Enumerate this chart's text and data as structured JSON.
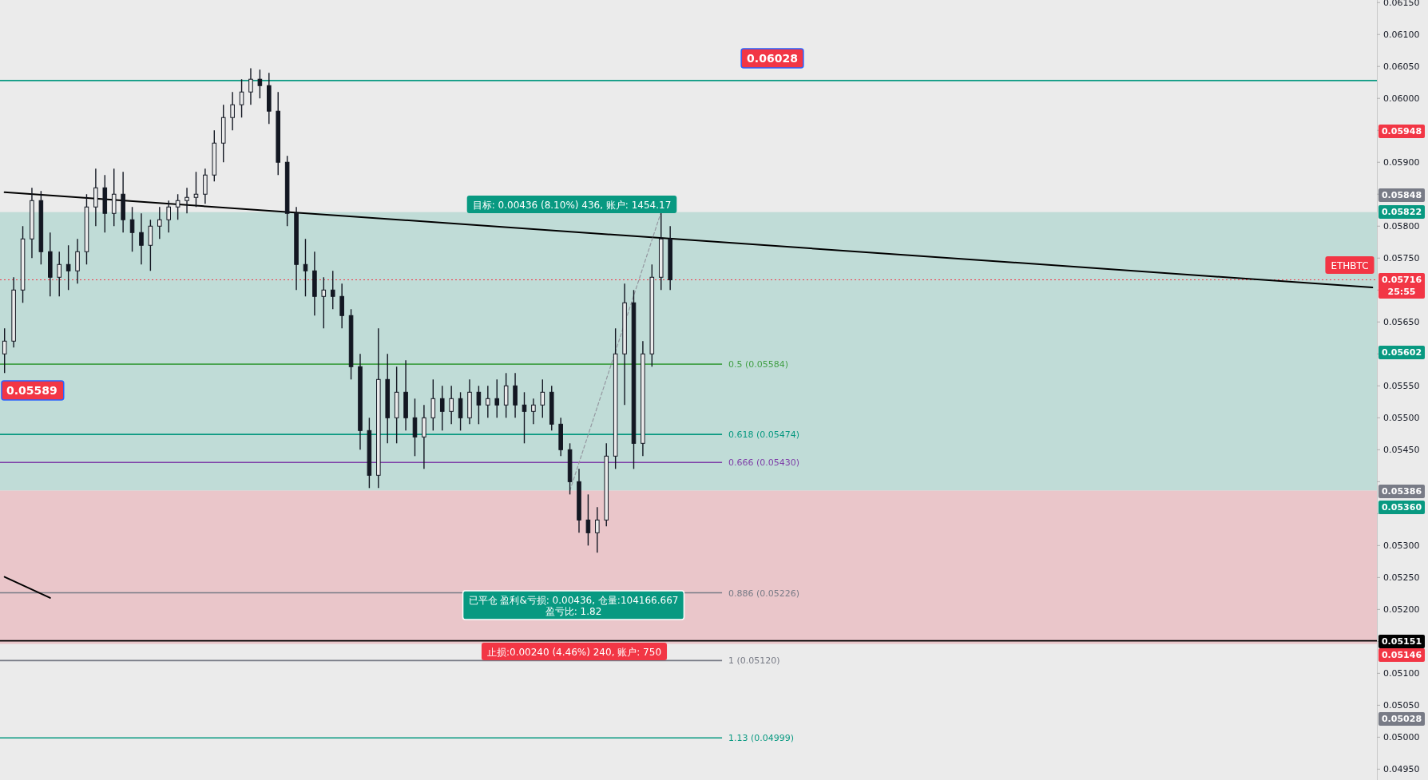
{
  "chart_data": {
    "type": "candlestick",
    "categories": [
      null,
      null,
      null,
      null,
      null,
      null,
      null,
      null,
      null,
      null,
      null,
      null,
      null,
      null,
      null,
      null,
      null,
      null,
      null,
      null,
      null,
      null,
      null,
      null,
      null,
      null,
      null,
      null,
      null,
      null,
      null,
      null,
      null,
      null,
      null,
      null,
      null,
      null,
      null,
      null,
      null,
      null,
      null,
      null,
      null,
      null,
      null,
      null,
      null,
      null,
      null,
      null,
      null,
      null,
      null,
      null,
      null,
      null,
      null,
      null,
      null,
      null,
      null,
      null,
      null,
      null,
      null,
      null,
      null,
      null,
      null,
      null,
      null,
      null,
      null,
      null,
      null,
      null,
      null,
      null,
      null,
      null,
      null,
      null,
      null,
      null,
      null,
      null,
      null,
      null,
      null,
      null,
      null,
      null,
      null,
      null,
      null,
      null,
      null,
      null,
      null,
      null,
      null,
      null,
      null,
      null,
      null,
      null,
      null,
      null,
      null,
      null,
      null,
      null,
      null,
      null,
      null,
      null,
      null,
      null,
      null,
      null,
      null,
      null,
      null,
      null,
      null,
      null,
      null,
      null,
      null,
      null,
      null,
      null,
      null,
      null,
      null,
      null,
      null,
      null,
      null,
      null,
      null,
      null,
      null,
      null,
      null,
      null,
      null,
      null,
      null
    ],
    "ohlc": [
      [
        0.056,
        0.0564,
        0.0557,
        0.0562
      ],
      [
        0.0562,
        0.0572,
        0.0561,
        0.057
      ],
      [
        0.057,
        0.058,
        0.0568,
        0.0578
      ],
      [
        0.0578,
        0.0586,
        0.0575,
        0.0584
      ],
      [
        0.0584,
        0.05855,
        0.0574,
        0.0576
      ],
      [
        0.0576,
        0.0579,
        0.0569,
        0.0572
      ],
      [
        0.0572,
        0.0576,
        0.0569,
        0.0574
      ],
      [
        0.0574,
        0.0577,
        0.057,
        0.0573
      ],
      [
        0.0573,
        0.0578,
        0.0571,
        0.0576
      ],
      [
        0.0576,
        0.0585,
        0.0574,
        0.0583
      ],
      [
        0.0583,
        0.0589,
        0.058,
        0.0586
      ],
      [
        0.0586,
        0.0588,
        0.0579,
        0.0582
      ],
      [
        0.0582,
        0.0589,
        0.058,
        0.0585
      ],
      [
        0.0585,
        0.05885,
        0.0579,
        0.0581
      ],
      [
        0.0581,
        0.0583,
        0.0576,
        0.0579
      ],
      [
        0.0579,
        0.0582,
        0.0574,
        0.0577
      ],
      [
        0.0577,
        0.0581,
        0.0573,
        0.058
      ],
      [
        0.058,
        0.0583,
        0.0578,
        0.0581
      ],
      [
        0.0581,
        0.0584,
        0.0579,
        0.0583
      ],
      [
        0.0583,
        0.0585,
        0.0581,
        0.0584
      ],
      [
        0.0584,
        0.0586,
        0.0582,
        0.05845
      ],
      [
        0.05845,
        0.05885,
        0.0583,
        0.0585
      ],
      [
        0.0585,
        0.0589,
        0.05835,
        0.0588
      ],
      [
        0.0588,
        0.0595,
        0.0587,
        0.0593
      ],
      [
        0.0593,
        0.0599,
        0.059,
        0.0597
      ],
      [
        0.0597,
        0.0601,
        0.0595,
        0.0599
      ],
      [
        0.0599,
        0.0603,
        0.0597,
        0.0601
      ],
      [
        0.0601,
        0.06047,
        0.0599,
        0.0603
      ],
      [
        0.0603,
        0.06045,
        0.06,
        0.0602
      ],
      [
        0.0602,
        0.0604,
        0.0596,
        0.0598
      ],
      [
        0.0598,
        0.0601,
        0.0588,
        0.059
      ],
      [
        0.059,
        0.0591,
        0.058,
        0.0582
      ],
      [
        0.0582,
        0.0583,
        0.057,
        0.0574
      ],
      [
        0.0574,
        0.0578,
        0.0569,
        0.0573
      ],
      [
        0.0573,
        0.0576,
        0.0566,
        0.0569
      ],
      [
        0.0569,
        0.0572,
        0.0564,
        0.057
      ],
      [
        0.057,
        0.0573,
        0.0567,
        0.0569
      ],
      [
        0.0569,
        0.0571,
        0.0564,
        0.0566
      ],
      [
        0.0566,
        0.0567,
        0.0556,
        0.0558
      ],
      [
        0.0558,
        0.056,
        0.0545,
        0.0548
      ],
      [
        0.0548,
        0.055,
        0.0539,
        0.0541
      ],
      [
        0.0541,
        0.0564,
        0.0539,
        0.0556
      ],
      [
        0.0556,
        0.056,
        0.0546,
        0.055
      ],
      [
        0.055,
        0.0558,
        0.0546,
        0.0554
      ],
      [
        0.0554,
        0.0559,
        0.0548,
        0.055
      ],
      [
        0.055,
        0.0553,
        0.0544,
        0.0547
      ],
      [
        0.0547,
        0.0552,
        0.0542,
        0.055
      ],
      [
        0.055,
        0.0556,
        0.0548,
        0.0553
      ],
      [
        0.0553,
        0.0555,
        0.0548,
        0.0551
      ],
      [
        0.0551,
        0.0555,
        0.0549,
        0.0553
      ],
      [
        0.0553,
        0.0554,
        0.0548,
        0.055
      ],
      [
        0.055,
        0.0556,
        0.0549,
        0.0554
      ],
      [
        0.0554,
        0.0555,
        0.0549,
        0.0552
      ],
      [
        0.0552,
        0.0555,
        0.055,
        0.0553
      ],
      [
        0.0553,
        0.0556,
        0.055,
        0.0552
      ],
      [
        0.0552,
        0.0557,
        0.055,
        0.0555
      ],
      [
        0.0555,
        0.0557,
        0.055,
        0.0552
      ],
      [
        0.0552,
        0.0554,
        0.0546,
        0.0551
      ],
      [
        0.0551,
        0.0553,
        0.0549,
        0.0552
      ],
      [
        0.0552,
        0.0556,
        0.055,
        0.0554
      ],
      [
        0.0554,
        0.0555,
        0.0548,
        0.0549
      ],
      [
        0.0549,
        0.055,
        0.0544,
        0.0545
      ],
      [
        0.0545,
        0.0546,
        0.0538,
        0.054
      ],
      [
        0.054,
        0.0542,
        0.0532,
        0.0534
      ],
      [
        0.0534,
        0.0538,
        0.053,
        0.0532
      ],
      [
        0.0532,
        0.0536,
        0.05289,
        0.0534
      ],
      [
        0.0534,
        0.0546,
        0.0533,
        0.0544
      ],
      [
        0.0544,
        0.0564,
        0.0542,
        0.056
      ],
      [
        0.056,
        0.0571,
        0.0552,
        0.0568
      ],
      [
        0.0568,
        0.057,
        0.0542,
        0.0546
      ],
      [
        0.0546,
        0.0562,
        0.0544,
        0.056
      ],
      [
        0.056,
        0.0574,
        0.0558,
        0.0572
      ],
      [
        0.0572,
        0.05822,
        0.057,
        0.0578
      ],
      [
        0.0578,
        0.058,
        0.057,
        0.05716
      ],
      null,
      null,
      null,
      null,
      null,
      null,
      null,
      null,
      null,
      null,
      null,
      null,
      null,
      null,
      null,
      null,
      null,
      null,
      null,
      null,
      null,
      null,
      null,
      null,
      null,
      null,
      null,
      null,
      null,
      null,
      null,
      null,
      null,
      null,
      null,
      null,
      null,
      null,
      null,
      null,
      null,
      null,
      null,
      null,
      null,
      null,
      null,
      null,
      null,
      null,
      null,
      null,
      null,
      null,
      null,
      null,
      null,
      null,
      null,
      null,
      null,
      null,
      null,
      null,
      null,
      null,
      null,
      null,
      null,
      null,
      null,
      null,
      null,
      null,
      null,
      null,
      null
    ],
    "series": [
      {
        "type": "line",
        "values": [
          0.05853,
          null,
          null,
          null,
          null,
          null,
          null,
          null,
          null,
          null,
          null,
          null,
          null,
          null,
          null,
          null,
          null,
          null,
          null,
          null,
          null,
          null,
          null,
          null,
          null,
          null,
          null,
          null,
          null,
          null,
          null,
          null,
          null,
          null,
          null,
          null,
          null,
          null,
          null,
          null,
          null,
          null,
          null,
          null,
          null,
          null,
          null,
          null,
          null,
          null,
          null,
          null,
          null,
          null,
          null,
          null,
          null,
          null,
          null,
          null,
          null,
          null,
          null,
          null,
          null,
          null,
          null,
          null,
          null,
          null,
          null,
          null,
          null,
          null,
          null,
          null,
          null,
          null,
          null,
          null,
          null,
          null,
          null,
          null,
          null,
          null,
          null,
          null,
          null,
          null,
          null,
          null,
          null,
          null,
          null,
          null,
          null,
          null,
          null,
          null,
          null,
          null,
          null,
          null,
          null,
          null,
          null,
          null,
          null,
          null,
          null,
          null,
          null,
          null,
          null,
          null,
          null,
          null,
          null,
          null,
          null,
          null,
          null,
          null,
          null,
          null,
          null,
          null,
          null,
          null,
          null,
          null,
          null,
          null,
          null,
          null,
          null,
          null,
          null,
          null,
          null,
          null,
          null,
          null,
          null,
          null,
          null,
          null,
          null,
          null,
          0.05704
        ],
        "color": "#000000"
      },
      {
        "type": "line",
        "values": [
          0.05251,
          null,
          null,
          null,
          null,
          0.05218,
          null,
          null,
          null,
          null,
          null,
          null,
          null,
          null,
          null,
          null,
          null,
          null,
          null,
          null,
          null,
          null,
          null,
          null,
          null,
          null,
          null,
          null,
          null,
          null,
          null,
          null,
          null,
          null,
          null,
          null,
          null,
          null,
          null,
          null,
          null,
          null,
          null,
          null,
          null,
          null,
          null,
          null,
          null,
          null,
          null,
          null,
          null,
          null,
          null,
          null,
          null,
          null,
          null,
          null,
          null,
          null,
          null,
          null,
          null,
          null,
          null,
          null,
          null,
          null,
          null,
          null,
          null,
          null,
          null,
          null,
          null,
          null,
          null,
          null,
          null,
          null,
          null,
          null,
          null,
          null,
          null,
          null,
          null,
          null,
          null,
          null,
          null,
          null,
          null,
          null,
          null,
          null,
          null,
          null,
          null,
          null,
          null,
          null,
          null,
          null,
          null,
          null,
          null,
          null,
          null,
          null,
          null,
          null,
          null,
          null,
          null,
          null,
          null,
          null,
          null,
          null,
          null,
          null,
          null,
          null,
          null,
          null,
          null,
          null,
          null,
          null,
          null,
          null,
          null,
          null,
          null,
          null,
          null,
          null,
          null,
          null,
          null,
          null,
          null,
          null,
          null,
          null,
          null,
          null,
          null
        ],
        "color": "#000000"
      },
      {
        "type": "line",
        "values": [
          null,
          null,
          null,
          null,
          null,
          null,
          null,
          null,
          null,
          null,
          null,
          null,
          null,
          null,
          null,
          null,
          null,
          null,
          null,
          null,
          null,
          null,
          null,
          null,
          null,
          null,
          null,
          null,
          null,
          null,
          null,
          null,
          null,
          null,
          null,
          null,
          null,
          null,
          null,
          null,
          null,
          null,
          null,
          null,
          null,
          null,
          null,
          null,
          null,
          null,
          null,
          null,
          null,
          null,
          null,
          null,
          null,
          null,
          null,
          null,
          null,
          null,
          0.05386,
          null,
          null,
          null,
          null,
          null,
          null,
          null,
          null,
          null,
          0.05822,
          null,
          null,
          null,
          null,
          null,
          null,
          null,
          null,
          null,
          null,
          null,
          null,
          null,
          null,
          null,
          null,
          null,
          null,
          null,
          null,
          null,
          null,
          null,
          null,
          null,
          null,
          null,
          null,
          null,
          null,
          null,
          null,
          null,
          null,
          null,
          null,
          null,
          null,
          null,
          null,
          null,
          null,
          null,
          null,
          null,
          null,
          null,
          null,
          null,
          null,
          null,
          null,
          null,
          null,
          null,
          null,
          null,
          null,
          null,
          null,
          null,
          null,
          null,
          null,
          null,
          null,
          null,
          null,
          null,
          null,
          null,
          null,
          null,
          null,
          null,
          null,
          null,
          null
        ],
        "color": "#9598a1",
        "line_style": "dashed"
      }
    ],
    "bands": [
      {
        "axis": "y",
        "from": 0.05386,
        "to": 0.05822,
        "color": "#c0dcd7"
      },
      {
        "axis": "y",
        "from": 0.05146,
        "to": 0.05386,
        "color": "#eac6ca"
      }
    ],
    "ref_lines": [
      {
        "axis": "y",
        "value": 0.06028,
        "color": "#089981"
      },
      {
        "axis": "y",
        "value": 0.05151,
        "color": "#000000"
      },
      {
        "axis": "y",
        "value": 0.05716,
        "color": "#f23645",
        "line_style": "dotted"
      },
      {
        "axis": "y",
        "value": 0.05584,
        "label": "0.5 (0.05584)",
        "color": "#43a047"
      },
      {
        "axis": "y",
        "value": 0.05474,
        "label": "0.618 (0.05474)",
        "color": "#089981"
      },
      {
        "axis": "y",
        "value": 0.0543,
        "label": "0.666 (0.05430)",
        "color": "#7e3fa8"
      },
      {
        "axis": "y",
        "value": 0.05226,
        "label": "0.886 (0.05226)",
        "color": "#787b86"
      },
      {
        "axis": "y",
        "value": 0.0512,
        "label": "1 (0.05120)",
        "color": "#787b86"
      },
      {
        "axis": "y",
        "value": 0.04999,
        "label": "1.13 (0.04999)",
        "color": "#089981"
      }
    ],
    "annotations": [
      "0.06028",
      "0.05589",
      "目标: 0.00436 (8.10%) 436, 账户: 1454.17",
      "已平仓 盈利&亏损: 0.00436, 仓量:104166.667\n盈亏比: 1.82",
      "止损:0.00240 (4.46%) 240, 账户: 750",
      "ETHBTC",
      "0.05948",
      "0.05848",
      "0.05822",
      "0.05716\n25:55",
      "0.05602",
      "0.05386",
      "0.05360",
      "0.05151",
      "0.05146",
      "0.05028"
    ],
    "ylim": [
      0.04933,
      0.06154
    ],
    "yticks": [
      {
        "value": 0.0495,
        "label": "0.04950"
      },
      {
        "value": 0.05,
        "label": "0.05000"
      },
      {
        "value": 0.0505,
        "label": "0.05050"
      },
      {
        "value": 0.051,
        "label": "0.05100"
      },
      {
        "value": 0.0515,
        "label": null
      },
      {
        "value": 0.052,
        "label": "0.05200"
      },
      {
        "value": 0.0525,
        "label": "0.05250"
      },
      {
        "value": 0.053,
        "label": "0.05300"
      },
      {
        "value": 0.0535,
        "label": null
      },
      {
        "value": 0.054,
        "label": null
      },
      {
        "value": 0.0545,
        "label": "0.05450"
      },
      {
        "value": 0.055,
        "label": "0.05500"
      },
      {
        "value": 0.0555,
        "label": "0.05550"
      },
      {
        "value": 0.056,
        "label": null
      },
      {
        "value": 0.0565,
        "label": "0.05650"
      },
      {
        "value": 0.057,
        "label": null
      },
      {
        "value": 0.0575,
        "label": "0.05750"
      },
      {
        "value": 0.058,
        "label": "0.05800"
      },
      {
        "value": 0.0585,
        "label": null
      },
      {
        "value": 0.059,
        "label": "0.05900"
      },
      {
        "value": 0.0595,
        "label": null
      },
      {
        "value": 0.06,
        "label": "0.06000"
      },
      {
        "value": 0.0605,
        "label": "0.06050"
      },
      {
        "value": 0.061,
        "label": "0.06100"
      },
      {
        "value": 0.0615,
        "label": "0.06150"
      }
    ],
    "tick_labels": "y",
    "grid": false
  }
}
